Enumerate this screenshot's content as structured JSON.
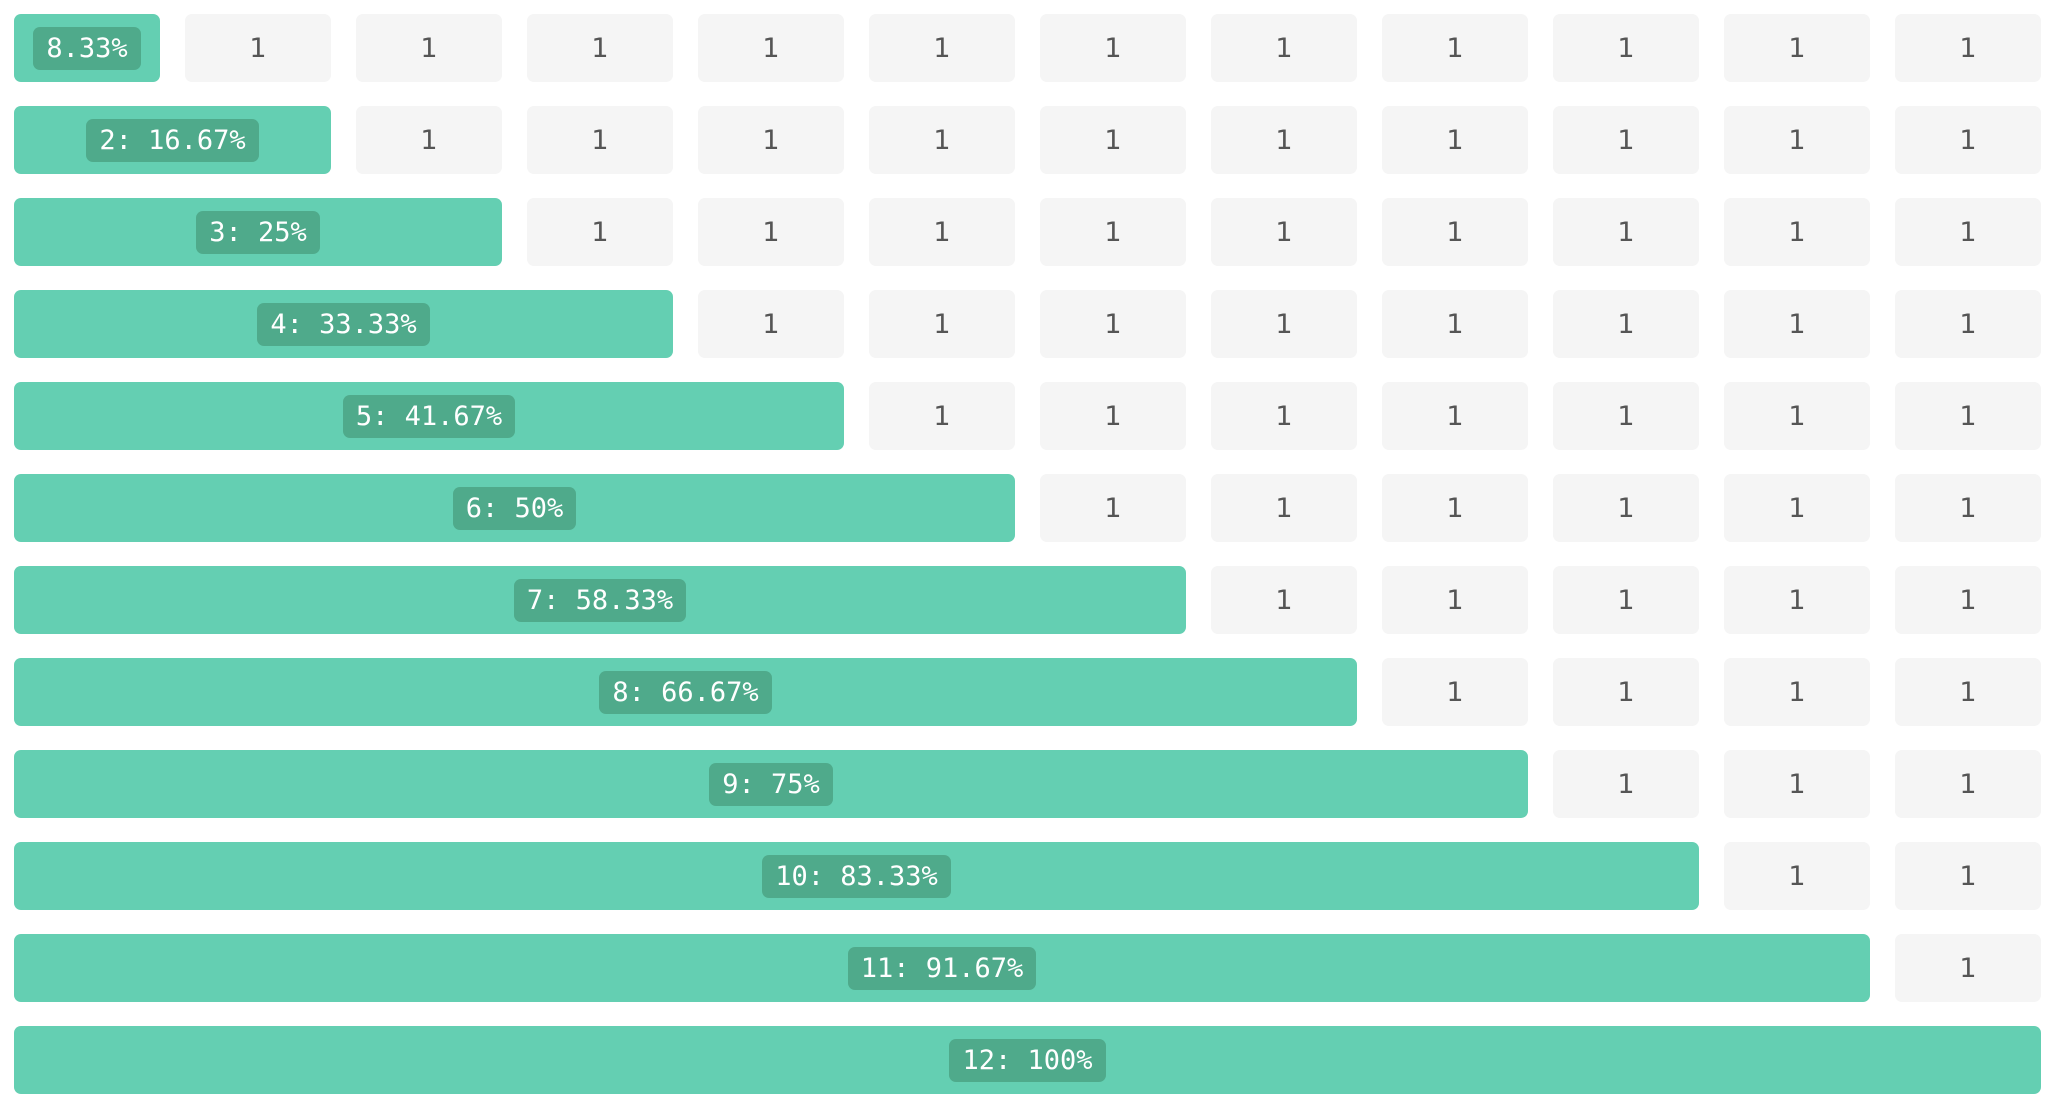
{
  "colors": {
    "filled": "#64cfb2",
    "pill": "#4faa8b",
    "empty": "#f5f5f5",
    "empty_text": "#555555"
  },
  "columns_total": 12,
  "rows": [
    {
      "span": 1,
      "label": "8.33%"
    },
    {
      "span": 2,
      "label": "2: 16.67%"
    },
    {
      "span": 3,
      "label": "3: 25%"
    },
    {
      "span": 4,
      "label": "4: 33.33%"
    },
    {
      "span": 5,
      "label": "5: 41.67%"
    },
    {
      "span": 6,
      "label": "6: 50%"
    },
    {
      "span": 7,
      "label": "7: 58.33%"
    },
    {
      "span": 8,
      "label": "8: 66.67%"
    },
    {
      "span": 9,
      "label": "9: 75%"
    },
    {
      "span": 10,
      "label": "10: 83.33%"
    },
    {
      "span": 11,
      "label": "11: 91.67%"
    },
    {
      "span": 12,
      "label": "12: 100%"
    }
  ],
  "empty_label": "1"
}
